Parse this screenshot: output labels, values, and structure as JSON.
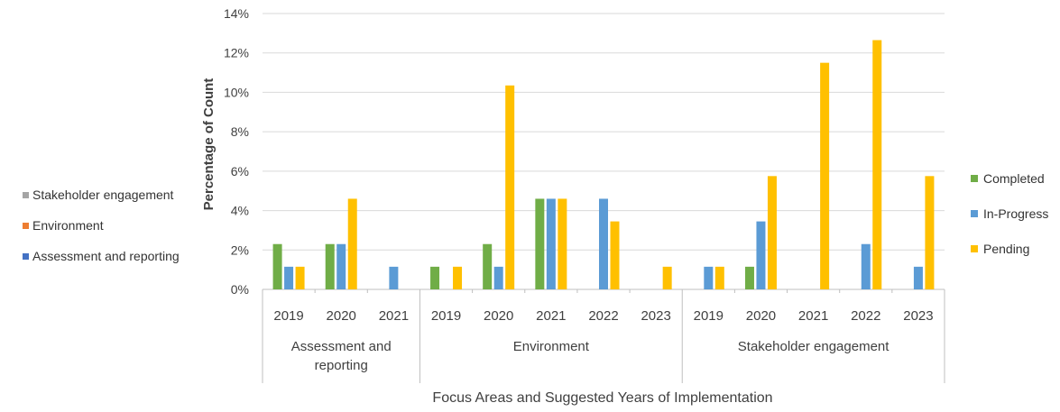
{
  "chart_data": {
    "type": "bar",
    "title": "",
    "xlabel": "Focus Areas and Suggested Years of Implementation",
    "ylabel": "Percentage of Count",
    "ylim": [
      0,
      14
    ],
    "ytick_labels": [
      "0%",
      "2%",
      "4%",
      "6%",
      "8%",
      "10%",
      "12%",
      "14%"
    ],
    "grid": true,
    "legend_position": "right",
    "groups": [
      {
        "name": "Assessment and reporting",
        "name_lines": [
          "Assessment and",
          "reporting"
        ],
        "categories": [
          "2019",
          "2020",
          "2021"
        ]
      },
      {
        "name": "Environment",
        "name_lines": [
          "Environment"
        ],
        "categories": [
          "2019",
          "2020",
          "2021",
          "2022",
          "2023"
        ]
      },
      {
        "name": "Stakeholder engagement",
        "name_lines": [
          "Stakeholder engagement"
        ],
        "categories": [
          "2019",
          "2020",
          "2021",
          "2022",
          "2023"
        ]
      }
    ],
    "series": [
      {
        "name": "Completed",
        "color": "#70AD47",
        "values": [
          2.3,
          2.3,
          0,
          1.15,
          2.3,
          4.6,
          0,
          0,
          0,
          1.15,
          0,
          0,
          0
        ]
      },
      {
        "name": "In-Progress",
        "color": "#5B9BD5",
        "values": [
          1.15,
          2.3,
          1.15,
          0,
          1.15,
          4.6,
          4.6,
          0,
          1.15,
          3.45,
          0,
          2.3,
          1.15
        ]
      },
      {
        "name": "Pending",
        "color": "#FFC000",
        "values": [
          1.15,
          4.6,
          0,
          1.15,
          10.35,
          4.6,
          3.45,
          1.15,
          1.15,
          5.75,
          11.5,
          12.65,
          5.75
        ]
      }
    ],
    "secondary_legend": [
      {
        "name": "Stakeholder engagement",
        "color": "#A5A5A5"
      },
      {
        "name": "Environment",
        "color": "#ED7D31"
      },
      {
        "name": "Assessment and reporting",
        "color": "#4472C4"
      }
    ]
  }
}
